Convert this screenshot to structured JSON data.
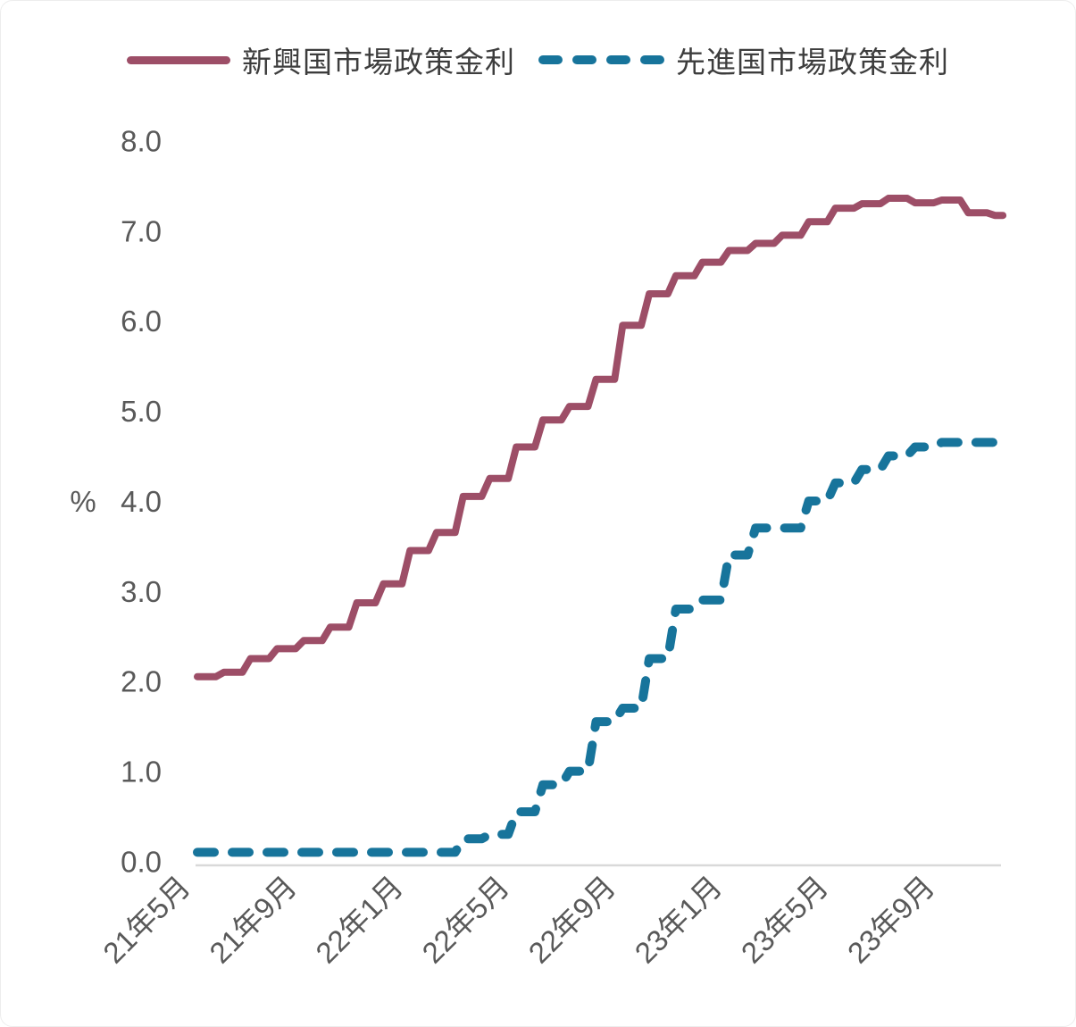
{
  "legend": [
    {
      "label": "新興国市場政策金利",
      "series_id": "emerging",
      "color": "#9d4e67",
      "style": "solid"
    },
    {
      "label": "先進国市場政策金利",
      "series_id": "developed",
      "color": "#17749b",
      "style": "dashed"
    }
  ],
  "chart_data": {
    "type": "line",
    "title": "",
    "xlabel": "",
    "ylabel": "%",
    "ylim": [
      0,
      8
    ],
    "ytick_step": 1.0,
    "grid": false,
    "legend_position": "top",
    "step_interpolation": true,
    "ytick_labels": [
      "0.0",
      "1.0",
      "2.0",
      "3.0",
      "4.0",
      "5.0",
      "6.0",
      "7.0",
      "8.0"
    ],
    "xtick_labels": [
      "21年5月",
      "21年9月",
      "22年1月",
      "22年5月",
      "22年9月",
      "23年1月",
      "23年5月",
      "23年9月"
    ],
    "x_months": [
      "21年5月",
      "21年6月",
      "21年7月",
      "21年8月",
      "21年9月",
      "21年10月",
      "21年11月",
      "21年12月",
      "22年1月",
      "22年2月",
      "22年3月",
      "22年4月",
      "22年5月",
      "22年6月",
      "22年7月",
      "22年8月",
      "22年9月",
      "22年10月",
      "22年11月",
      "22年12月",
      "23年1月",
      "23年2月",
      "23年3月",
      "23年4月",
      "23年5月",
      "23年6月",
      "23年7月",
      "23年8月",
      "23年9月",
      "23年10月",
      "23年11月"
    ],
    "series": [
      {
        "id": "emerging",
        "name": "新興国市場政策金利",
        "color": "#9d4e67",
        "line_style": "solid",
        "values": [
          2.05,
          2.1,
          2.25,
          2.36,
          2.45,
          2.6,
          2.87,
          3.08,
          3.45,
          3.65,
          4.05,
          4.25,
          4.6,
          4.9,
          5.05,
          5.35,
          5.95,
          6.3,
          6.5,
          6.65,
          6.78,
          6.86,
          6.95,
          7.1,
          7.25,
          7.3,
          7.36,
          7.31,
          7.34,
          7.2,
          7.17
        ]
      },
      {
        "id": "developed",
        "name": "先進国市場政策金利",
        "color": "#17749b",
        "line_style": "dashed",
        "values": [
          0.1,
          0.1,
          0.1,
          0.1,
          0.1,
          0.1,
          0.1,
          0.1,
          0.1,
          0.1,
          0.25,
          0.3,
          0.55,
          0.85,
          1.0,
          1.55,
          1.7,
          2.25,
          2.8,
          2.9,
          3.4,
          3.7,
          3.7,
          4.0,
          4.2,
          4.35,
          4.5,
          4.6,
          4.65,
          4.65,
          4.65
        ]
      }
    ],
    "colors": {
      "axis_line": "#d9d9d9",
      "tick_text": "#595959"
    }
  }
}
